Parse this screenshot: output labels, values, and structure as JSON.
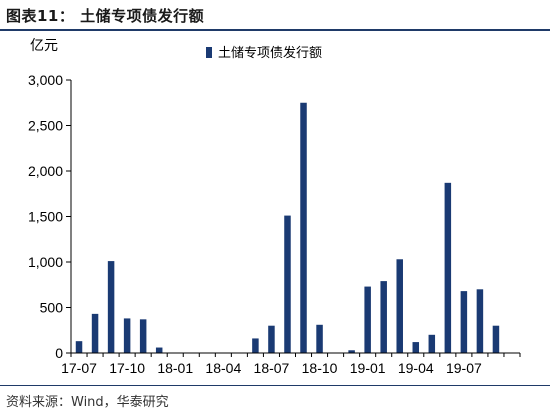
{
  "figure": {
    "title": "图表11：  土储专项债发行额",
    "source": "资料来源：Wind，华泰研究"
  },
  "colors": {
    "bar": "#1a3a73",
    "axis": "#000000",
    "rule": "#1f3a68"
  },
  "chart_data": {
    "type": "bar",
    "title": "",
    "ylabel": "亿元",
    "xlabel": "",
    "ylim": [
      0,
      3000
    ],
    "yticks": [
      0,
      500,
      1000,
      1500,
      2000,
      2500,
      3000
    ],
    "ytick_labels": [
      "0",
      "500",
      "1,000",
      "1,500",
      "2,000",
      "2,500",
      "3,000"
    ],
    "grid": false,
    "legend_position": "top-center",
    "categories": [
      "17-07",
      "17-08",
      "17-09",
      "17-10",
      "17-11",
      "17-12",
      "18-01",
      "18-02",
      "18-03",
      "18-04",
      "18-05",
      "18-06",
      "18-07",
      "18-08",
      "18-09",
      "18-10",
      "18-11",
      "18-12",
      "19-01",
      "19-02",
      "19-03",
      "19-04",
      "19-05",
      "19-06",
      "19-07",
      "19-08",
      "19-09",
      "19-10"
    ],
    "xtick_labels": [
      "17-07",
      "17-10",
      "18-01",
      "18-04",
      "18-07",
      "18-10",
      "19-01",
      "19-04",
      "19-07"
    ],
    "series": [
      {
        "name": "土储专项债发行额",
        "values": [
          130,
          430,
          1010,
          380,
          370,
          60,
          0,
          0,
          0,
          0,
          0,
          160,
          300,
          1510,
          2750,
          310,
          0,
          30,
          730,
          790,
          1030,
          120,
          200,
          1870,
          680,
          700,
          300,
          0
        ]
      }
    ]
  }
}
